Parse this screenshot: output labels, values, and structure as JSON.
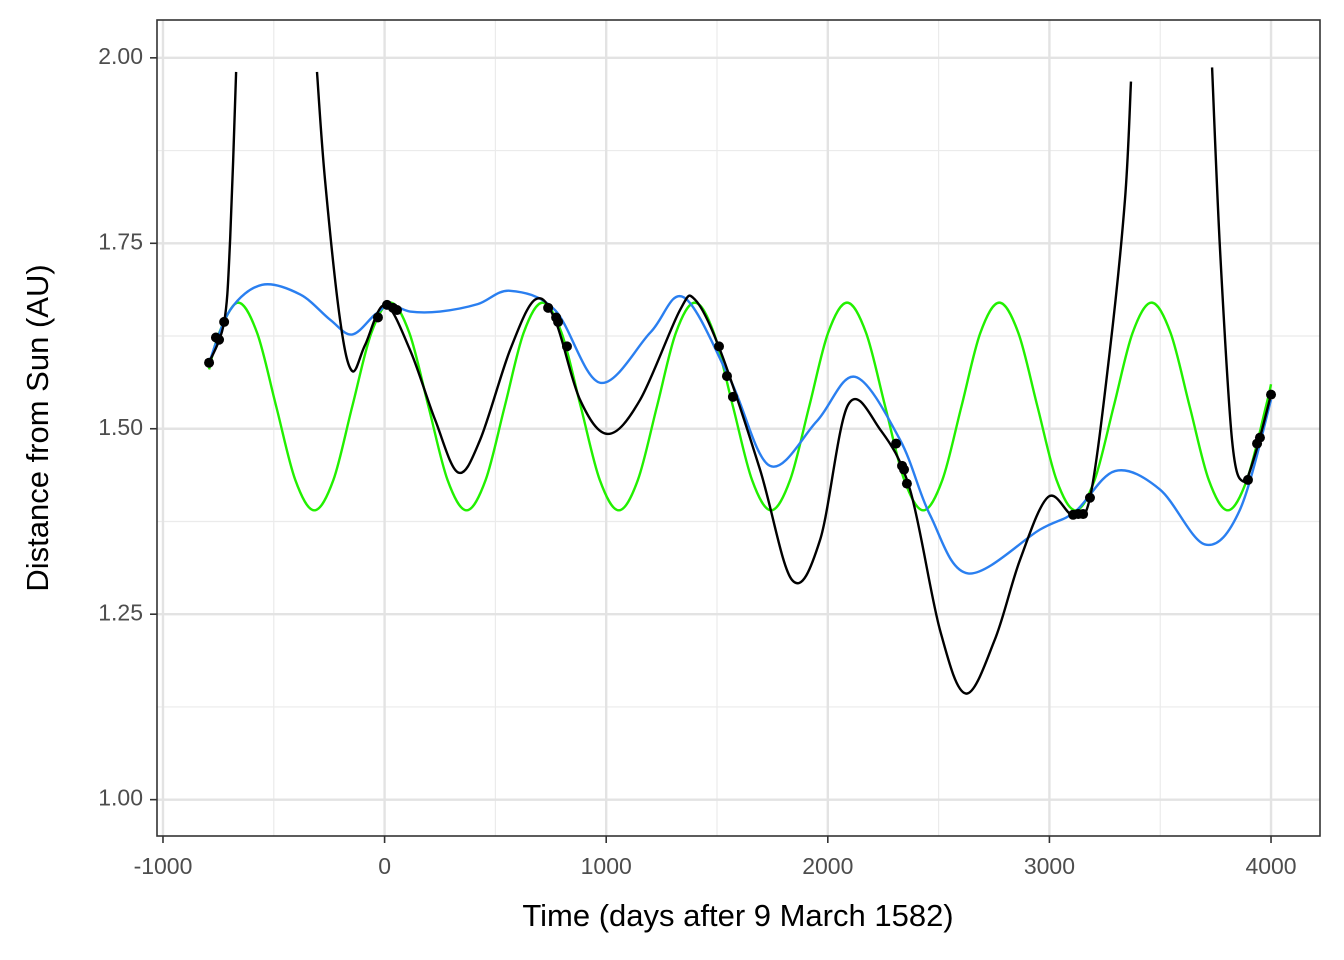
{
  "chart_data": {
    "type": "line",
    "xlabel": "Time (days after 9 March 1582)",
    "ylabel": "Distance from Sun (AU)",
    "xlim": [
      -1027,
      4221
    ],
    "ylim": [
      0.951,
      2.051
    ],
    "xticks": [
      -1000,
      0,
      1000,
      2000,
      3000,
      4000
    ],
    "yticks": [
      {
        "value": 1,
        "label": "1.00"
      },
      {
        "value": 1.25,
        "label": "1.25"
      },
      {
        "value": 1.5,
        "label": "1.50"
      },
      {
        "value": 1.75,
        "label": "1.75"
      },
      {
        "value": 2,
        "label": "2.00"
      }
    ],
    "x_minor_grid": [
      -500,
      500,
      1500,
      2500,
      3500
    ],
    "y_minor_grid": [
      1.125,
      1.375,
      1.625,
      1.875
    ],
    "grid": true,
    "series": [
      {
        "color": "#22f000",
        "style": "line",
        "x": [
          -792,
          -747,
          -661,
          -575,
          -489,
          -403,
          -317,
          -231,
          -146,
          -60,
          26,
          112,
          198,
          284,
          370,
          456,
          542,
          627,
          713,
          799,
          885,
          971,
          1057,
          1143,
          1229,
          1314,
          1400,
          1486,
          1572,
          1658,
          1744,
          1830,
          1916,
          2001,
          2087,
          2173,
          2259,
          2345,
          2431,
          2517,
          2603,
          2688,
          2774,
          2860,
          2946,
          3032,
          3118,
          3204,
          3290,
          3375,
          3461,
          3547,
          3633,
          3719,
          3805,
          3891,
          3977,
          4000
        ],
        "values": [
          1.58,
          1.629,
          1.67,
          1.629,
          1.53,
          1.431,
          1.39,
          1.431,
          1.53,
          1.629,
          1.67,
          1.629,
          1.53,
          1.431,
          1.39,
          1.431,
          1.53,
          1.629,
          1.67,
          1.629,
          1.53,
          1.431,
          1.39,
          1.431,
          1.53,
          1.629,
          1.67,
          1.629,
          1.53,
          1.431,
          1.39,
          1.431,
          1.53,
          1.629,
          1.67,
          1.629,
          1.53,
          1.431,
          1.39,
          1.431,
          1.53,
          1.629,
          1.67,
          1.629,
          1.53,
          1.431,
          1.39,
          1.431,
          1.53,
          1.629,
          1.67,
          1.629,
          1.53,
          1.431,
          1.39,
          1.431,
          1.53,
          1.56
        ]
      },
      {
        "color": "#2a7ff0",
        "style": "line",
        "x": [
          -792,
          -697,
          -553,
          -381,
          -246,
          -147,
          -43,
          25,
          115,
          250,
          420,
          566,
          769,
          972,
          1200,
          1351,
          1560,
          1739,
          1950,
          2123,
          2326,
          2461,
          2633,
          2957,
          3115,
          3296,
          3499,
          3702,
          3860,
          4000
        ],
        "values": [
          1.589,
          1.66,
          1.694,
          1.681,
          1.647,
          1.627,
          1.654,
          1.667,
          1.658,
          1.658,
          1.668,
          1.686,
          1.66,
          1.562,
          1.63,
          1.677,
          1.566,
          1.45,
          1.51,
          1.57,
          1.485,
          1.384,
          1.305,
          1.364,
          1.388,
          1.443,
          1.418,
          1.344,
          1.391,
          1.539
        ]
      },
      {
        "color": "#000000",
        "style": "line",
        "x": [
          -792,
          -724,
          -697,
          -670,
          -500,
          -305,
          -269,
          -201,
          -147,
          -88,
          2,
          115,
          228,
          332,
          431,
          566,
          679,
          769,
          882,
          1008,
          1153,
          1333,
          1401,
          1514,
          1694,
          1839,
          1965,
          2091,
          2236,
          2371,
          2506,
          2623,
          2754,
          2867,
          2994,
          3107,
          3183,
          3273,
          3341,
          3368,
          3550,
          3734,
          3770,
          3824,
          3874,
          3928,
          4000
        ],
        "values": [
          1.589,
          1.644,
          1.755,
          1.981,
          null,
          1.981,
          1.836,
          1.647,
          1.578,
          1.613,
          1.667,
          1.606,
          1.512,
          1.441,
          1.485,
          1.606,
          1.674,
          1.647,
          1.539,
          1.493,
          1.539,
          1.66,
          1.674,
          1.606,
          1.445,
          1.296,
          1.35,
          1.532,
          1.499,
          1.418,
          1.229,
          1.143,
          1.216,
          1.323,
          1.408,
          1.383,
          1.407,
          1.606,
          1.809,
          1.968,
          null,
          1.987,
          1.741,
          1.485,
          1.429,
          1.465,
          1.546
        ]
      },
      {
        "color": "#000000",
        "style": "points",
        "x": [
          -792,
          -761,
          -747,
          -724,
          -30,
          11,
          38,
          56,
          738,
          774,
          783,
          823,
          1509,
          1545,
          1572,
          2308,
          2335,
          2344,
          2357,
          3107,
          3130,
          3152,
          3183,
          3896,
          3937,
          3950,
          4000
        ],
        "values": [
          1.589,
          1.623,
          1.62,
          1.644,
          1.65,
          1.667,
          1.663,
          1.66,
          1.663,
          1.65,
          1.644,
          1.611,
          1.611,
          1.571,
          1.543,
          1.48,
          1.45,
          1.445,
          1.426,
          1.384,
          1.385,
          1.385,
          1.407,
          1.431,
          1.48,
          1.488,
          1.546
        ]
      }
    ]
  }
}
